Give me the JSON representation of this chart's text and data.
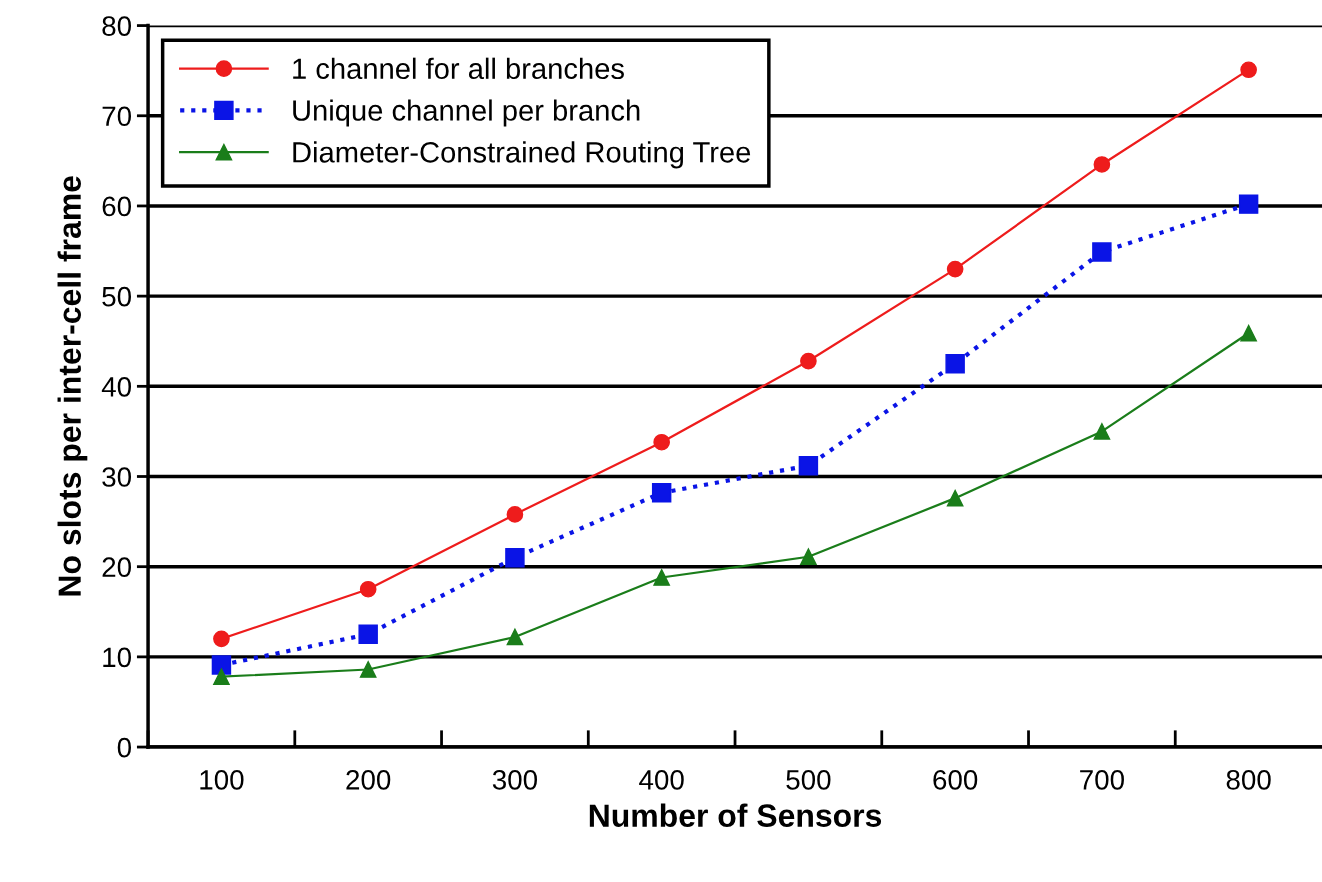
{
  "chart_data": {
    "type": "line",
    "xlabel": "Number of Sensors",
    "ylabel": "No slots per inter-cell frame",
    "categories": [
      "100",
      "200",
      "300",
      "400",
      "500",
      "600",
      "700",
      "800"
    ],
    "series": [
      {
        "name": "1 channel for all branches",
        "color": "#ee1c1c",
        "marker": "circle",
        "line_style": "solid",
        "values": [
          12,
          17.5,
          25.8,
          33.8,
          42.8,
          53,
          64.6,
          75.1
        ]
      },
      {
        "name": "Unique channel per branch",
        "color": "#0a14e6",
        "marker": "square",
        "line_style": "dotted",
        "values": [
          9.1,
          12.5,
          21,
          28.2,
          31.2,
          42.5,
          54.9,
          60.2
        ]
      },
      {
        "name": "Diameter-Constrained Routing Tree",
        "color": "#1a7d1a",
        "marker": "triangle",
        "line_style": "solid",
        "values": [
          7.8,
          8.6,
          12.2,
          18.8,
          21.1,
          27.6,
          35,
          45.9
        ]
      }
    ],
    "ylim": [
      0,
      80
    ],
    "yticks": [
      0,
      10,
      20,
      30,
      40,
      50,
      60,
      70,
      80
    ],
    "grid": "y",
    "legend": "top left"
  }
}
